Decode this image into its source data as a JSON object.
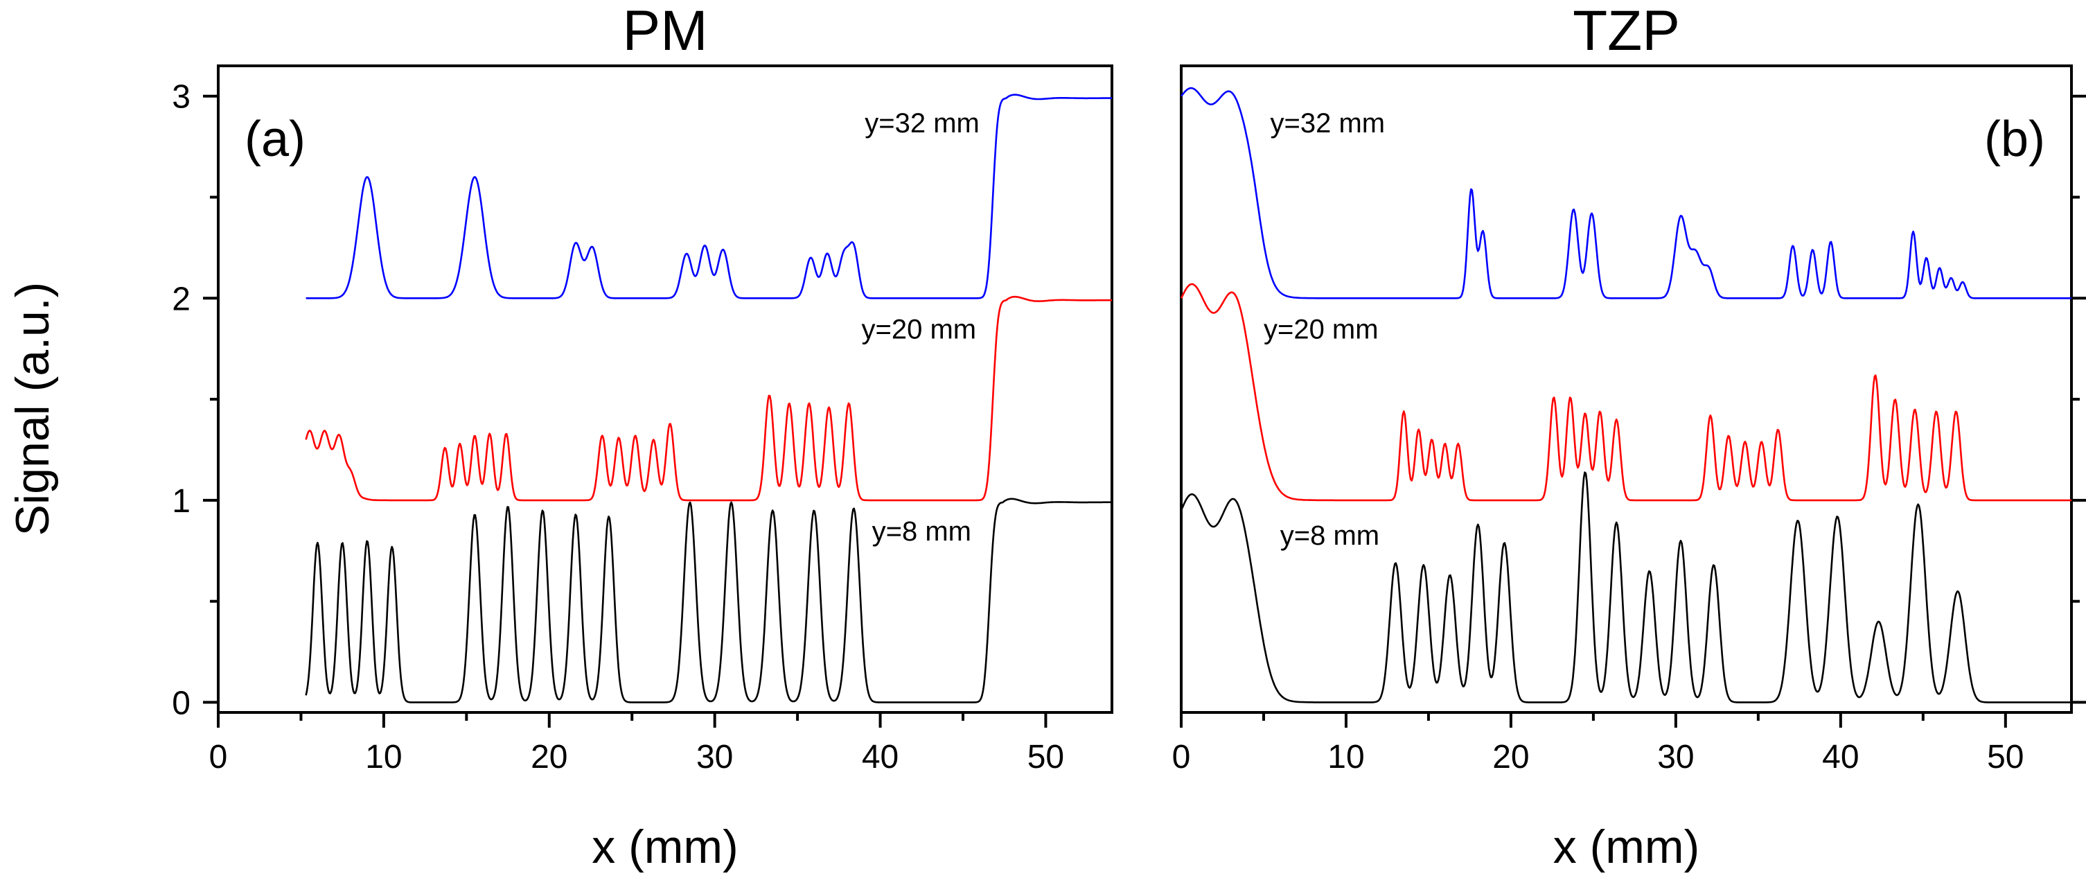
{
  "figure": {
    "ylabel": "Signal (a.u.)"
  },
  "chart_data": [
    {
      "type": "line",
      "title": "PM",
      "panel_tag": "(a)",
      "xlabel": "x (mm)",
      "ylabel": "Signal (a.u.)",
      "xlim": [
        0,
        54
      ],
      "ylim": [
        -0.05,
        3.15
      ],
      "x_ticks": [
        "0",
        "10",
        "20",
        "30",
        "40",
        "50"
      ],
      "y_ticks": [
        "0",
        "1",
        "2",
        "3"
      ],
      "grid": false,
      "series": [
        {
          "label": "y=8 mm",
          "color": "#000000",
          "baseline": 0,
          "label_at": [
            39.5,
            0.8
          ],
          "label_anchor": "start",
          "x_start": 5.3,
          "x_end": 54,
          "peaks": [
            [
              6.0,
              0.79,
              0.28
            ],
            [
              7.5,
              0.79,
              0.28
            ],
            [
              9.0,
              0.8,
              0.28
            ],
            [
              10.5,
              0.77,
              0.28
            ],
            [
              15.5,
              0.93,
              0.32
            ],
            [
              17.5,
              0.97,
              0.32
            ],
            [
              19.6,
              0.95,
              0.32
            ],
            [
              21.6,
              0.93,
              0.32
            ],
            [
              23.6,
              0.92,
              0.32
            ],
            [
              28.5,
              0.99,
              0.36
            ],
            [
              31.0,
              0.99,
              0.36
            ],
            [
              33.5,
              0.95,
              0.36
            ],
            [
              36.0,
              0.95,
              0.36
            ],
            [
              38.4,
              0.96,
              0.36
            ]
          ],
          "steps": [
            [
              46.6,
              0.99,
              0.35
            ]
          ],
          "ringing": {
            "x": 47.4,
            "amp": 0.03
          }
        },
        {
          "label": "y=20 mm",
          "color": "#ff0000",
          "baseline": 1,
          "label_at": [
            45.8,
            1.8
          ],
          "label_anchor": "end",
          "x_start": 5.3,
          "x_end": 54,
          "peaks": [
            [
              13.7,
              0.26,
              0.22
            ],
            [
              14.6,
              0.28,
              0.22
            ],
            [
              15.5,
              0.32,
              0.22
            ],
            [
              16.4,
              0.33,
              0.22
            ],
            [
              17.4,
              0.33,
              0.22
            ],
            [
              23.2,
              0.32,
              0.24
            ],
            [
              24.2,
              0.31,
              0.24
            ],
            [
              25.2,
              0.32,
              0.24
            ],
            [
              26.3,
              0.3,
              0.24
            ],
            [
              27.3,
              0.38,
              0.24
            ],
            [
              33.3,
              0.52,
              0.26
            ],
            [
              34.5,
              0.48,
              0.26
            ],
            [
              35.7,
              0.48,
              0.26
            ],
            [
              36.9,
              0.46,
              0.26
            ],
            [
              38.1,
              0.48,
              0.26
            ]
          ],
          "plateau": {
            "x0": 5.3,
            "x1": 8.0,
            "level": 0.3,
            "wiggle": 0.045,
            "period": 0.9
          },
          "steps": [
            [
              46.8,
              0.99,
              0.35
            ]
          ],
          "ringing": {
            "x": 47.6,
            "amp": 0.03
          }
        },
        {
          "label": "y=32 mm",
          "color": "#0000ff",
          "baseline": 2,
          "label_at": [
            46.0,
            2.82
          ],
          "label_anchor": "end",
          "x_start": 5.3,
          "x_end": 54,
          "peaks": [
            [
              9.0,
              0.6,
              0.55
            ],
            [
              15.5,
              0.6,
              0.55
            ],
            [
              21.6,
              0.27,
              0.35
            ],
            [
              22.6,
              0.25,
              0.35
            ],
            [
              28.3,
              0.22,
              0.32
            ],
            [
              29.4,
              0.26,
              0.32
            ],
            [
              30.5,
              0.24,
              0.32
            ],
            [
              35.8,
              0.2,
              0.3
            ],
            [
              36.8,
              0.22,
              0.3
            ],
            [
              37.8,
              0.21,
              0.3
            ],
            [
              38.4,
              0.24,
              0.28
            ]
          ],
          "steps": [
            [
              46.8,
              0.99,
              0.35
            ]
          ],
          "ringing": {
            "x": 47.6,
            "amp": 0.03
          }
        }
      ]
    },
    {
      "type": "line",
      "title": "TZP",
      "panel_tag": "(b)",
      "xlabel": "x (mm)",
      "ylabel": "",
      "xlim": [
        0,
        54
      ],
      "ylim": [
        -0.05,
        3.15
      ],
      "x_ticks": [
        "0",
        "10",
        "20",
        "30",
        "40",
        "50"
      ],
      "y_ticks": [],
      "grid": false,
      "series": [
        {
          "label": "y=8 mm",
          "color": "#000000",
          "baseline": 0,
          "label_at": [
            6.0,
            0.78
          ],
          "label_anchor": "start",
          "x_start": 0,
          "x_end": 54,
          "peaks": [
            [
              13.0,
              0.69,
              0.35
            ],
            [
              14.7,
              0.68,
              0.35
            ],
            [
              16.3,
              0.63,
              0.35
            ],
            [
              18.0,
              0.88,
              0.35
            ],
            [
              19.6,
              0.79,
              0.35
            ],
            [
              24.5,
              1.14,
              0.35
            ],
            [
              26.4,
              0.89,
              0.35
            ],
            [
              28.4,
              0.65,
              0.35
            ],
            [
              30.3,
              0.8,
              0.35
            ],
            [
              32.3,
              0.68,
              0.35
            ],
            [
              37.4,
              0.9,
              0.45
            ],
            [
              39.8,
              0.92,
              0.45
            ],
            [
              42.3,
              0.4,
              0.45
            ],
            [
              44.7,
              0.98,
              0.45
            ],
            [
              47.1,
              0.55,
              0.45
            ]
          ],
          "plateau": {
            "x0": 0,
            "x1": 4.7,
            "level": 0.95,
            "wiggle": 0.08,
            "period": 2.6
          },
          "plateau_drop": 0.4
        },
        {
          "label": "y=20 mm",
          "color": "#ff0000",
          "baseline": 1,
          "label_at": [
            5.0,
            1.8
          ],
          "label_anchor": "start",
          "x_start": 0,
          "x_end": 54,
          "peaks": [
            [
              13.5,
              0.44,
              0.22
            ],
            [
              14.4,
              0.35,
              0.22
            ],
            [
              15.2,
              0.3,
              0.22
            ],
            [
              16.0,
              0.28,
              0.22
            ],
            [
              16.8,
              0.28,
              0.22
            ],
            [
              22.6,
              0.51,
              0.24
            ],
            [
              23.6,
              0.51,
              0.24
            ],
            [
              24.5,
              0.43,
              0.24
            ],
            [
              25.4,
              0.44,
              0.24
            ],
            [
              26.4,
              0.4,
              0.24
            ],
            [
              32.1,
              0.42,
              0.24
            ],
            [
              33.2,
              0.32,
              0.24
            ],
            [
              34.2,
              0.29,
              0.24
            ],
            [
              35.2,
              0.29,
              0.24
            ],
            [
              36.2,
              0.35,
              0.24
            ],
            [
              42.1,
              0.62,
              0.26
            ],
            [
              43.3,
              0.5,
              0.26
            ],
            [
              44.5,
              0.45,
              0.26
            ],
            [
              45.8,
              0.44,
              0.26
            ],
            [
              47.0,
              0.44,
              0.26
            ]
          ],
          "plateau": {
            "x0": 0,
            "x1": 4.6,
            "level": 1.0,
            "wiggle": 0.07,
            "period": 2.6
          },
          "plateau_drop": 0.45
        },
        {
          "label": "y=32 mm",
          "color": "#0000ff",
          "baseline": 2,
          "label_at": [
            5.4,
            2.82
          ],
          "label_anchor": "start",
          "x_start": 0,
          "x_end": 54,
          "peaks": [
            [
              17.6,
              0.54,
              0.22
            ],
            [
              18.3,
              0.33,
              0.22
            ],
            [
              23.8,
              0.44,
              0.28
            ],
            [
              24.9,
              0.42,
              0.28
            ],
            [
              30.3,
              0.4,
              0.35
            ],
            [
              31.2,
              0.22,
              0.35
            ],
            [
              32.0,
              0.14,
              0.3
            ],
            [
              37.1,
              0.26,
              0.22
            ],
            [
              38.3,
              0.24,
              0.22
            ],
            [
              39.4,
              0.28,
              0.22
            ],
            [
              44.4,
              0.33,
              0.2
            ],
            [
              45.2,
              0.2,
              0.2
            ],
            [
              46.0,
              0.15,
              0.2
            ],
            [
              46.7,
              0.1,
              0.2
            ],
            [
              47.4,
              0.08,
              0.2
            ]
          ],
          "plateau": {
            "x0": 0,
            "x1": 4.6,
            "level": 1.0,
            "wiggle": 0.04,
            "period": 2.4
          },
          "plateau_drop": 0.4
        }
      ]
    }
  ]
}
